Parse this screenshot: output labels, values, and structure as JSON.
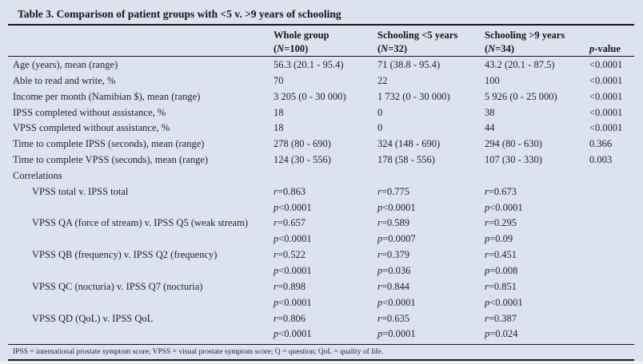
{
  "page": {
    "panel_background": "#dce3ef",
    "text_color": "#20242c",
    "rule_color": "#15171d"
  },
  "table": {
    "title": "Table 3. Comparison of patient groups with <5 v. >9 years of schooling",
    "columns": [
      {
        "line1": "",
        "line2": ""
      },
      {
        "line1": "Whole group",
        "line2": "(N=100)"
      },
      {
        "line1": "Schooling <5 years",
        "line2": "(N=32)"
      },
      {
        "line1": "Schooling >9 years",
        "line2": "(N=34)"
      },
      {
        "line1": "",
        "line2": "p-value"
      }
    ],
    "rows": [
      {
        "label": "Age (years), mean (range)",
        "indent": 0,
        "values": [
          "56.3 (20.1 - 95.4)",
          "71 (38.8 - 95.4)",
          "43.2 (20.1 - 87.5)",
          "<0.0001"
        ]
      },
      {
        "label": "Able to read and write, %",
        "indent": 0,
        "values": [
          "70",
          "22",
          "100",
          "<0.0001"
        ]
      },
      {
        "label": "Income per month (Namibian $), mean (range)",
        "indent": 0,
        "values": [
          "3 205 (0 - 30 000)",
          "1 732 (0 - 30 000)",
          "5 926 (0 - 25 000)",
          "<0.0001"
        ]
      },
      {
        "label": "IPSS completed without assistance, %",
        "indent": 0,
        "values": [
          "18",
          "0",
          "38",
          "<0.0001"
        ]
      },
      {
        "label": "VPSS completed without assistance, %",
        "indent": 0,
        "values": [
          "18",
          "0",
          "44",
          "<0.0001"
        ]
      },
      {
        "label": "Time to complete IPSS (seconds), mean (range)",
        "indent": 0,
        "values": [
          "278 (80 - 690)",
          "324 (148 - 690)",
          "294 (80 - 630)",
          "0.366"
        ]
      },
      {
        "label": "Time to complete VPSS (seconds), mean (range)",
        "indent": 0,
        "values": [
          "124 (30 - 556)",
          "178 (58 - 556)",
          "107 (30 - 330)",
          "0.003"
        ]
      },
      {
        "label": "Correlations",
        "indent": 0,
        "values": [
          "",
          "",
          "",
          ""
        ]
      },
      {
        "label": "VPSS total v. IPSS total",
        "indent": 1,
        "values": [
          "r=0.863",
          "r=0.775",
          "r=0.673",
          ""
        ]
      },
      {
        "label": "",
        "indent": 1,
        "values": [
          "p<0.0001",
          "p<0.0001",
          "p<0.0001",
          ""
        ]
      },
      {
        "label": "VPSS QA (force of stream) v. IPSS Q5 (weak stream)",
        "indent": 1,
        "values": [
          "r=0.657",
          "r=0.589",
          "r=0.295",
          ""
        ]
      },
      {
        "label": "",
        "indent": 1,
        "values": [
          "p<0.0001",
          "p=0.0007",
          "p=0.09",
          ""
        ]
      },
      {
        "label": "VPSS QB (frequency) v. IPSS Q2 (frequency)",
        "indent": 1,
        "values": [
          "r=0.522",
          "r=0.379",
          "r=0.451",
          ""
        ]
      },
      {
        "label": "",
        "indent": 1,
        "values": [
          "p<0.0001",
          "p=0.036",
          "p=0.008",
          ""
        ]
      },
      {
        "label": "VPSS QC (nocturia) v. IPSS Q7 (nocturia)",
        "indent": 1,
        "values": [
          "r=0.898",
          "r=0.844",
          "r=0.851",
          ""
        ]
      },
      {
        "label": "",
        "indent": 1,
        "values": [
          "p<0.0001",
          "p<0.0001",
          "p<0.0001",
          ""
        ]
      },
      {
        "label": "VPSS QD (QoL) v. IPSS QoL",
        "indent": 1,
        "values": [
          "r=0.806",
          "r=0.635",
          "r=0.387",
          ""
        ]
      },
      {
        "label": "",
        "indent": 1,
        "values": [
          "p<0.0001",
          "p=0.0001",
          "p=0.024",
          ""
        ]
      }
    ],
    "footnote": "IPSS = international prostate symptom score; VPSS = visual prostate symptom score; Q = question; QoL = quality of life."
  }
}
